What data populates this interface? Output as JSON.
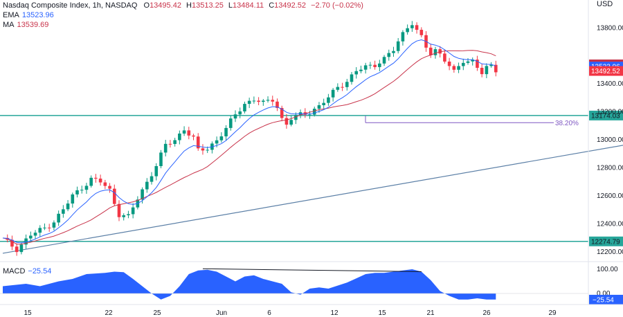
{
  "header": {
    "title": "Nasdaq Composite Index, 1h, NASDAQ",
    "open_label": "O",
    "open": "13495.42",
    "high_label": "H",
    "high": "13513.25",
    "low_label": "L",
    "low": "13484.11",
    "close_label": "C",
    "close": "13492.52",
    "change": "−2.70 (−0.02%)",
    "ema_label": "EMA",
    "ema_value": "13523.96",
    "ma_label": "MA",
    "ma_value": "13539.69",
    "macd_label": "MACD",
    "macd_value": "−25.54",
    "currency": "USD"
  },
  "colors": {
    "up": "#089981",
    "down": "#f23645",
    "ema": "#2962ff",
    "ma": "#c8334a",
    "level": "#26a69a",
    "trend": "#5b7fa6",
    "macd": "#2962ff",
    "fib": "#7e57c2"
  },
  "chart_data": [
    {
      "type": "candlestick",
      "title": "Nasdaq Composite Index, 1h, NASDAQ",
      "x_ticks": [
        "15",
        "22",
        "25",
        "Jun",
        "6",
        "12",
        "15",
        "21",
        "26",
        "29"
      ],
      "y_ticks": [
        "12200.00",
        "12400.00",
        "12600.00",
        "12800.00",
        "13000.00",
        "13200.00",
        "13400.00",
        "13800.00"
      ],
      "ylim": [
        12150,
        13960
      ],
      "level_lines": [
        13174.03,
        12274.79
      ],
      "level_labels": [
        "13174.03",
        "12274.79"
      ],
      "price_labels": [
        {
          "value": 13539.69,
          "text": "13539.69",
          "color": "#c8334a"
        },
        {
          "value": 13523.96,
          "text": "13523.96",
          "color": "#2962ff"
        },
        {
          "value": 13492.52,
          "text": "13492.52",
          "color": "#f23645"
        }
      ],
      "fib_label": "38.20%",
      "fib_value": 13123,
      "trendline": [
        {
          "x": 0,
          "y": 12190
        },
        {
          "x": 140,
          "y": 13000
        }
      ],
      "path": [
        [
          0,
          12290
        ],
        [
          3,
          12220
        ],
        [
          6,
          12320
        ],
        [
          9,
          12370
        ],
        [
          11,
          12420
        ],
        [
          13,
          12500
        ],
        [
          15,
          12600
        ],
        [
          17,
          12660
        ],
        [
          19,
          12720
        ],
        [
          21,
          12700
        ],
        [
          23,
          12640
        ],
        [
          24,
          12550
        ],
        [
          25,
          12470
        ],
        [
          27,
          12450
        ],
        [
          29,
          12580
        ],
        [
          31,
          12700
        ],
        [
          33,
          12820
        ],
        [
          35,
          12960
        ],
        [
          37,
          13000
        ],
        [
          39,
          13080
        ],
        [
          41,
          13010
        ],
        [
          42,
          12920
        ],
        [
          44,
          12940
        ],
        [
          46,
          13000
        ],
        [
          48,
          13080
        ],
        [
          50,
          13180
        ],
        [
          52,
          13260
        ],
        [
          54,
          13290
        ],
        [
          56,
          13260
        ],
        [
          58,
          13290
        ],
        [
          59,
          13240
        ],
        [
          60,
          13150
        ],
        [
          61,
          13110
        ],
        [
          62,
          13150
        ],
        [
          64,
          13180
        ],
        [
          66,
          13200
        ],
        [
          68,
          13240
        ],
        [
          70,
          13300
        ],
        [
          72,
          13380
        ],
        [
          74,
          13420
        ],
        [
          76,
          13490
        ],
        [
          78,
          13520
        ],
        [
          80,
          13540
        ],
        [
          82,
          13580
        ],
        [
          84,
          13640
        ],
        [
          85,
          13700
        ],
        [
          86,
          13760
        ],
        [
          87,
          13810
        ],
        [
          88,
          13840
        ],
        [
          89,
          13780
        ],
        [
          90,
          13730
        ],
        [
          91,
          13660
        ],
        [
          92,
          13610
        ],
        [
          93,
          13640
        ],
        [
          94,
          13620
        ],
        [
          95,
          13580
        ],
        [
          96,
          13530
        ],
        [
          97,
          13480
        ],
        [
          98,
          13520
        ],
        [
          99,
          13560
        ],
        [
          100,
          13560
        ],
        [
          101,
          13570
        ],
        [
          102,
          13530
        ],
        [
          103,
          13480
        ],
        [
          104,
          13510
        ],
        [
          105,
          13520
        ],
        [
          106,
          13492
        ]
      ]
    },
    {
      "type": "area",
      "title": "MACD",
      "y_ticks": [
        "100.00",
        "0.00"
      ],
      "ylim": [
        -40,
        120
      ],
      "last": -25.54,
      "last_label": "−25.54",
      "divergence_line": [
        {
          "x": 43,
          "y": 102
        },
        {
          "x": 90,
          "y": 90
        }
      ],
      "x": [
        0,
        5,
        8,
        12,
        15,
        18,
        22,
        24,
        26,
        28,
        30,
        32,
        34,
        36,
        38,
        40,
        42,
        44,
        46,
        48,
        50,
        52,
        54,
        56,
        58,
        60,
        62,
        64,
        66,
        68,
        70,
        74,
        78,
        80,
        82,
        84,
        86,
        88,
        90,
        92,
        94,
        96,
        98,
        100,
        102,
        104,
        106
      ],
      "values": [
        30,
        40,
        30,
        50,
        60,
        80,
        85,
        90,
        88,
        60,
        30,
        0,
        -25,
        -10,
        30,
        80,
        95,
        98,
        90,
        70,
        50,
        70,
        75,
        60,
        50,
        40,
        5,
        -5,
        20,
        25,
        20,
        45,
        80,
        85,
        85,
        90,
        95,
        100,
        90,
        55,
        10,
        -10,
        -25,
        -25,
        -20,
        -25,
        -25
      ]
    }
  ]
}
